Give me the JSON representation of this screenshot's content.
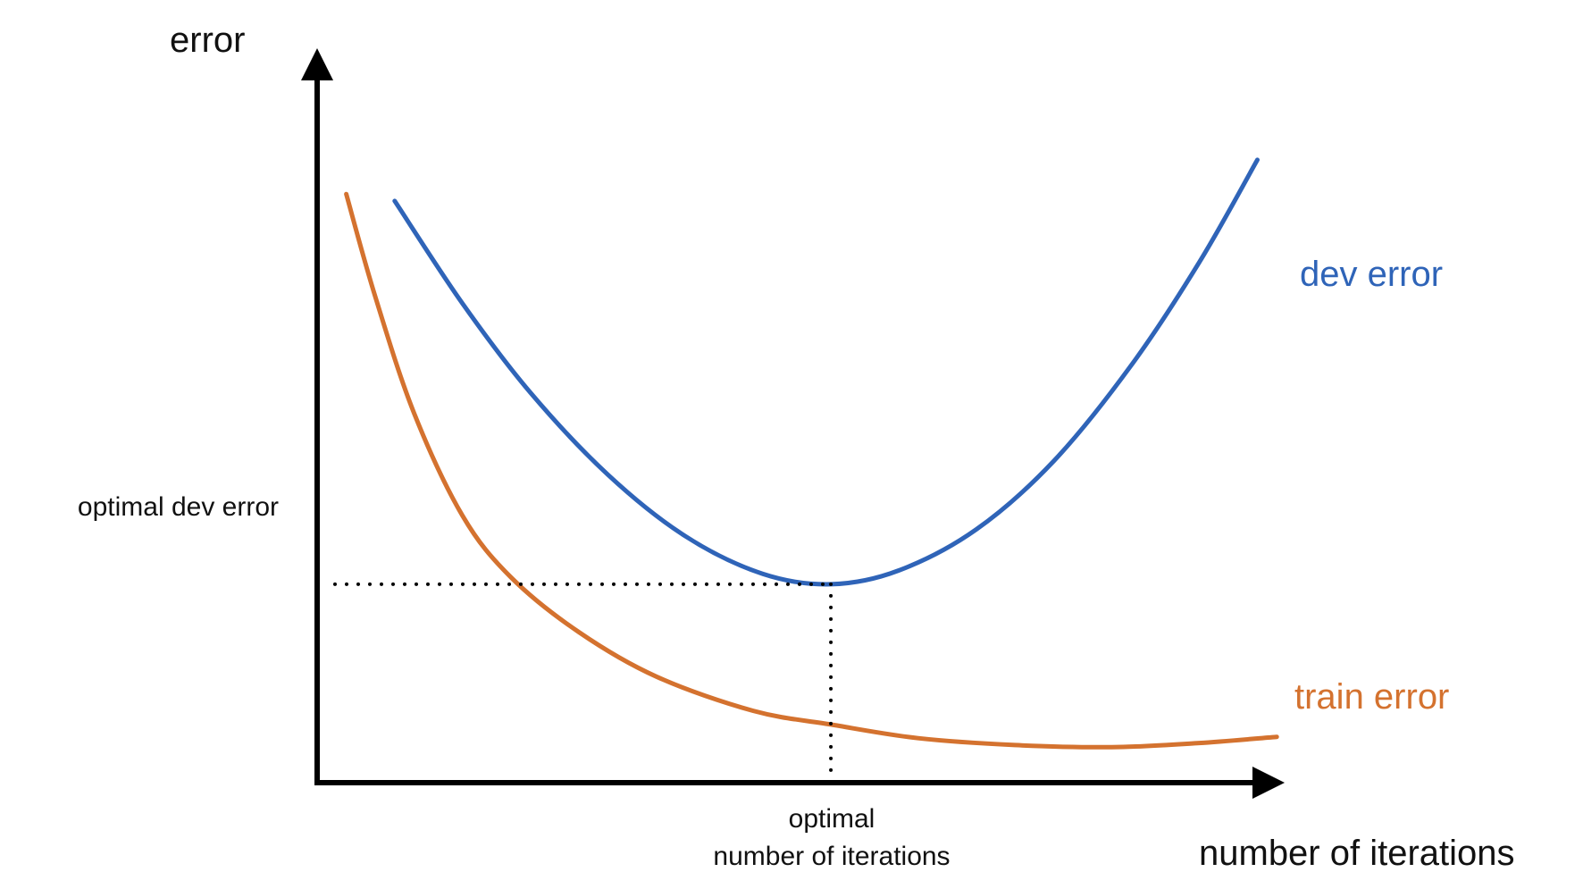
{
  "chart_data": {
    "type": "line",
    "title": "",
    "xlabel": "number of iterations",
    "ylabel": "error",
    "x_ticks": [],
    "y_ticks": [],
    "grid": false,
    "legend": "none",
    "series": [
      {
        "name": "dev error",
        "color": "#2f64b8",
        "points": [
          [
            0.08,
            0.85
          ],
          [
            0.15,
            0.7
          ],
          [
            0.22,
            0.57
          ],
          [
            0.3,
            0.45
          ],
          [
            0.38,
            0.36
          ],
          [
            0.46,
            0.305
          ],
          [
            0.53,
            0.29
          ],
          [
            0.6,
            0.31
          ],
          [
            0.68,
            0.37
          ],
          [
            0.76,
            0.47
          ],
          [
            0.84,
            0.61
          ],
          [
            0.91,
            0.76
          ],
          [
            0.97,
            0.91
          ]
        ]
      },
      {
        "name": "train error",
        "color": "#d4722f",
        "points": [
          [
            0.03,
            0.86
          ],
          [
            0.06,
            0.71
          ],
          [
            0.1,
            0.54
          ],
          [
            0.15,
            0.39
          ],
          [
            0.2,
            0.3
          ],
          [
            0.27,
            0.22
          ],
          [
            0.35,
            0.155
          ],
          [
            0.45,
            0.105
          ],
          [
            0.53,
            0.085
          ],
          [
            0.62,
            0.065
          ],
          [
            0.72,
            0.055
          ],
          [
            0.82,
            0.052
          ],
          [
            0.91,
            0.058
          ],
          [
            0.99,
            0.067
          ]
        ]
      }
    ],
    "annotations": {
      "optimal_dev_error": "optimal dev error",
      "optimal_iterations_line1": "optimal",
      "optimal_iterations_line2": "number of iterations",
      "optimal_point": [
        0.53,
        0.29
      ]
    },
    "axis_color": "#000000"
  }
}
